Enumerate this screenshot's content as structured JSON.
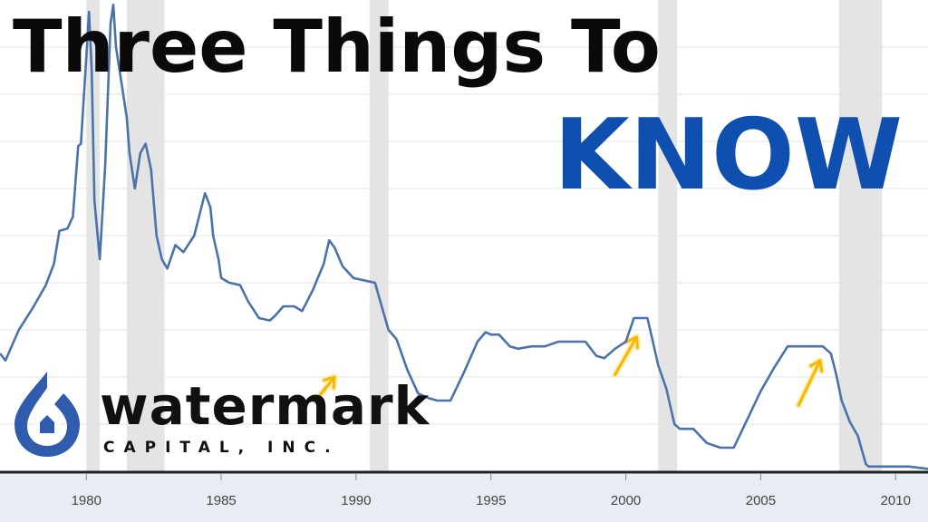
{
  "headline": {
    "line1": "Three Things To",
    "line2": "KNOW"
  },
  "brand": {
    "name": "watermark",
    "subtitle": "CAPITAL, INC.",
    "logo_icon": "water-drop-logo-icon"
  },
  "colors": {
    "series": "#4a72ab",
    "headline_accent": "#0f4fb0",
    "recession_band": "#e4e4e4",
    "arrow": "#f5b800"
  },
  "chart_data": {
    "type": "line",
    "title": "",
    "xlabel": "",
    "ylabel": "",
    "x_ticks": [
      1980,
      1985,
      1990,
      1995,
      2000,
      2005,
      2010
    ],
    "xlim": [
      1976.8,
      2011.2
    ],
    "ylim": [
      0,
      20
    ],
    "grid": true,
    "legend": "none",
    "recessions": [
      [
        1980.0,
        1980.5
      ],
      [
        1981.5,
        1982.9
      ],
      [
        1990.5,
        1991.2
      ],
      [
        2001.2,
        2001.9
      ],
      [
        2007.9,
        2009.5
      ]
    ],
    "series": [
      {
        "x": [
          1976.8,
          1977.0,
          1977.5,
          1978.0,
          1978.5,
          1978.8,
          1979.0,
          1979.3,
          1979.5,
          1979.7,
          1979.8,
          1980.0,
          1980.1,
          1980.2,
          1980.3,
          1980.5,
          1980.7,
          1980.9,
          1981.0,
          1981.1,
          1981.3,
          1981.5,
          1981.6,
          1981.8,
          1982.0,
          1982.2,
          1982.4,
          1982.6,
          1982.8,
          1983.0,
          1983.3,
          1983.6,
          1984.0,
          1984.4,
          1984.6,
          1984.7,
          1984.9,
          1985.0,
          1985.3,
          1985.7,
          1986.0,
          1986.4,
          1986.8,
          1987.0,
          1987.3,
          1987.7,
          1988.0,
          1988.4,
          1988.8,
          1989.0,
          1989.2,
          1989.5,
          1989.9,
          1990.3,
          1990.7,
          1990.9,
          1991.2,
          1991.5,
          1991.9,
          1992.3,
          1992.7,
          1993.0,
          1993.5,
          1994.0,
          1994.5,
          1994.8,
          1995.0,
          1995.3,
          1995.7,
          1996.0,
          1996.5,
          1997.0,
          1997.5,
          1998.0,
          1998.5,
          1998.9,
          1999.2,
          1999.6,
          2000.0,
          2000.3,
          2000.5,
          2000.8,
          2001.0,
          2001.2,
          2001.5,
          2001.8,
          2002.0,
          2002.5,
          2003.0,
          2003.5,
          2004.0,
          2004.5,
          2005.0,
          2005.5,
          2006.0,
          2006.5,
          2007.0,
          2007.3,
          2007.6,
          2007.8,
          2008.0,
          2008.3,
          2008.6,
          2008.9,
          2009.0,
          2009.5,
          2010.0,
          2010.5,
          2011.2
        ],
        "y": [
          5.0,
          4.7,
          6.0,
          6.9,
          7.9,
          8.8,
          10.2,
          10.3,
          10.8,
          13.8,
          13.9,
          17.6,
          19.5,
          17.0,
          11.5,
          9.0,
          13.0,
          19.0,
          19.8,
          18.0,
          16.5,
          15.0,
          13.5,
          12.0,
          13.5,
          13.9,
          12.8,
          10.0,
          9.0,
          8.6,
          9.6,
          9.3,
          10.0,
          11.8,
          11.2,
          10.0,
          9.0,
          8.2,
          8.0,
          7.9,
          7.2,
          6.5,
          6.4,
          6.6,
          7.0,
          7.0,
          6.8,
          7.7,
          8.8,
          9.8,
          9.5,
          8.7,
          8.2,
          8.1,
          8.0,
          7.2,
          6.0,
          5.6,
          4.3,
          3.3,
          3.1,
          3.0,
          3.0,
          4.2,
          5.5,
          5.9,
          5.8,
          5.8,
          5.3,
          5.2,
          5.3,
          5.3,
          5.5,
          5.5,
          5.5,
          4.9,
          4.8,
          5.2,
          5.5,
          6.5,
          6.5,
          6.5,
          5.5,
          4.5,
          3.5,
          2.0,
          1.8,
          1.8,
          1.2,
          1.0,
          1.0,
          2.2,
          3.4,
          4.4,
          5.3,
          5.3,
          5.3,
          5.3,
          5.0,
          4.1,
          3.0,
          2.1,
          1.5,
          0.3,
          0.2,
          0.2,
          0.2,
          0.2,
          0.1
        ]
      }
    ]
  }
}
